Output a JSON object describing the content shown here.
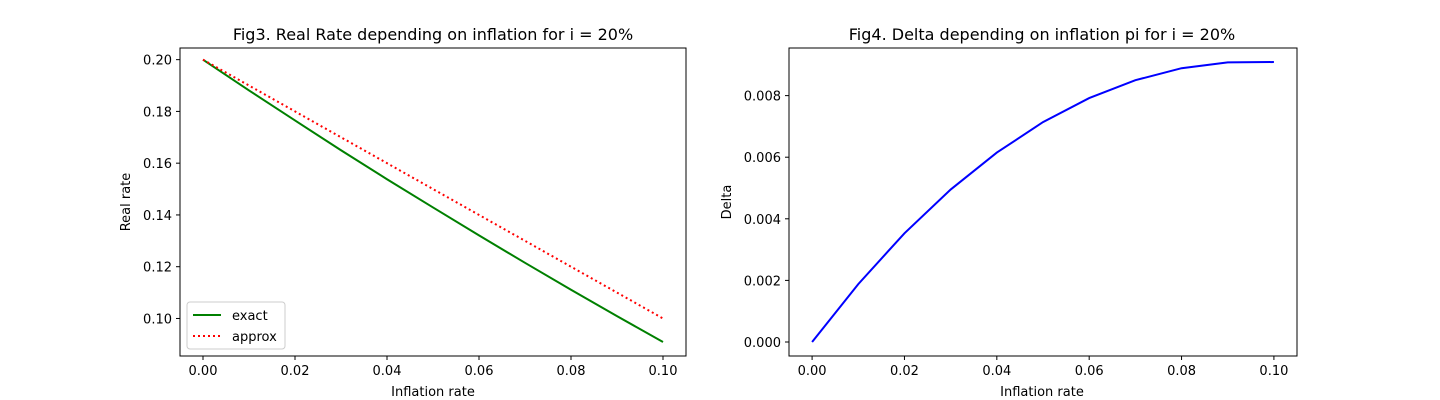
{
  "chart_data": [
    {
      "type": "line",
      "title": "Fig3. Real Rate depending on inflation for i = 20%",
      "xlabel": "Inflation rate",
      "ylabel": "Real rate",
      "xlim": [
        -0.005,
        0.105
      ],
      "ylim": [
        0.0855,
        0.2045
      ],
      "xticks": [
        0.0,
        0.02,
        0.04,
        0.06,
        0.08,
        0.1
      ],
      "xtick_labels": [
        "0.00",
        "0.02",
        "0.04",
        "0.06",
        "0.08",
        "0.10"
      ],
      "yticks": [
        0.1,
        0.12,
        0.14,
        0.16,
        0.18,
        0.2
      ],
      "ytick_labels": [
        "0.10",
        "0.12",
        "0.14",
        "0.16",
        "0.18",
        "0.20"
      ],
      "legend": "bottom-left",
      "grid": false,
      "series": [
        {
          "name": "exact",
          "color": "#008000",
          "style": "solid",
          "x": [
            0.0,
            0.01,
            0.02,
            0.03,
            0.04,
            0.05,
            0.06,
            0.07,
            0.08,
            0.09,
            0.1
          ],
          "y": [
            0.2,
            0.1881,
            0.1765,
            0.165,
            0.1538,
            0.1429,
            0.1321,
            0.1215,
            0.1111,
            0.1009,
            0.0909
          ]
        },
        {
          "name": "approx",
          "color": "#ff0000",
          "style": "dotted",
          "x": [
            0.0,
            0.01,
            0.02,
            0.03,
            0.04,
            0.05,
            0.06,
            0.07,
            0.08,
            0.09,
            0.1
          ],
          "y": [
            0.2,
            0.19,
            0.18,
            0.17,
            0.16,
            0.15,
            0.14,
            0.13,
            0.12,
            0.11,
            0.1
          ]
        }
      ]
    },
    {
      "type": "line",
      "title": "Fig4. Delta depending on inflation pi for i = 20%",
      "xlabel": "Inflation rate",
      "ylabel": "Delta",
      "xlim": [
        -0.005,
        0.105
      ],
      "ylim": [
        -0.000455,
        0.009546
      ],
      "xticks": [
        0.0,
        0.02,
        0.04,
        0.06,
        0.08,
        0.1
      ],
      "xtick_labels": [
        "0.00",
        "0.02",
        "0.04",
        "0.06",
        "0.08",
        "0.10"
      ],
      "yticks": [
        0.0,
        0.002,
        0.004,
        0.006,
        0.008
      ],
      "ytick_labels": [
        "0.000",
        "0.002",
        "0.004",
        "0.006",
        "0.008"
      ],
      "grid": false,
      "series": [
        {
          "color": "#0000ff",
          "style": "solid",
          "x": [
            0.0,
            0.01,
            0.02,
            0.03,
            0.04,
            0.05,
            0.06,
            0.07,
            0.08,
            0.09,
            0.1
          ],
          "y": [
            0.0,
            0.00188,
            0.00353,
            0.00495,
            0.00615,
            0.00714,
            0.00792,
            0.0085,
            0.00889,
            0.00908,
            0.00909
          ]
        }
      ]
    }
  ]
}
